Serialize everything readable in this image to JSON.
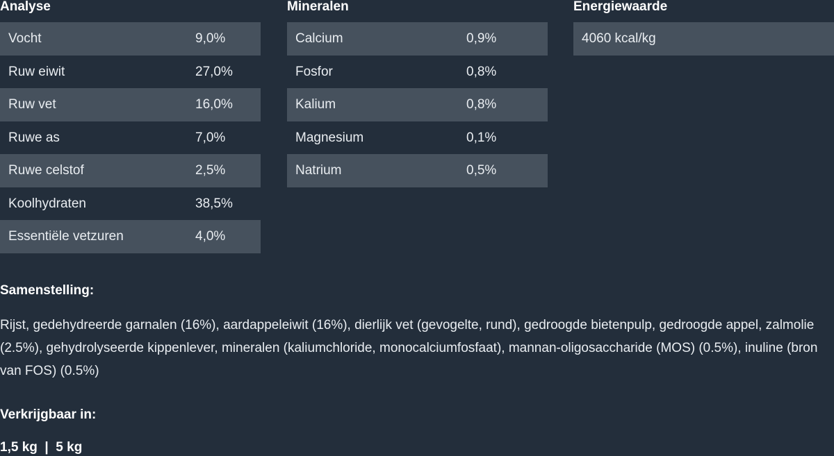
{
  "analyse": {
    "title": "Analyse",
    "rows": [
      {
        "label": "Vocht",
        "value": "9,0%"
      },
      {
        "label": "Ruw eiwit",
        "value": "27,0%"
      },
      {
        "label": "Ruw vet",
        "value": "16,0%"
      },
      {
        "label": "Ruwe as",
        "value": "7,0%"
      },
      {
        "label": "Ruwe celstof",
        "value": "2,5%"
      },
      {
        "label": "Koolhydraten",
        "value": "38,5%"
      },
      {
        "label": "Essentiële vetzuren",
        "value": "4,0%"
      }
    ]
  },
  "mineralen": {
    "title": "Mineralen",
    "rows": [
      {
        "label": "Calcium",
        "value": "0,9%"
      },
      {
        "label": "Fosfor",
        "value": "0,8%"
      },
      {
        "label": "Kalium",
        "value": "0,8%"
      },
      {
        "label": "Magnesium",
        "value": "0,1%"
      },
      {
        "label": "Natrium",
        "value": "0,5%"
      }
    ]
  },
  "energie": {
    "title": "Energiewaarde",
    "value": "4060 kcal/kg"
  },
  "samenstelling": {
    "title": "Samenstelling:",
    "text": "Rijst, gedehydreerde garnalen (16%), aardappeleiwit (16%), dierlijk vet (gevogelte, rund), gedroogde bietenpulp, gedroogde appel, zalmolie (2.5%), gehydrolyseerde kippenlever, mineralen (kaliumchloride, monocalciumfosfaat), mannan-oligosaccharide (MOS) (0.5%), inuline (bron van FOS) (0.5%)"
  },
  "verkrijgbaar": {
    "title": "Verkrijgbaar in:",
    "sizes": "1,5 kg  |  5 kg"
  },
  "colors": {
    "background": "#232e3b",
    "row_shade": "#46515d",
    "text": "#e9edf1"
  }
}
